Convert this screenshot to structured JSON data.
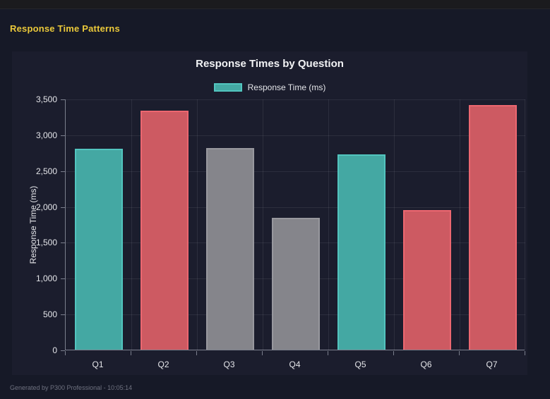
{
  "page": {
    "heading": "Response Time Patterns",
    "footer": "Generated by P300 Professional - 10:05:14"
  },
  "colors": {
    "heading_yellow": "#ebc93a",
    "outer_background": "#161927",
    "panel_background": "#1b1d2d",
    "topbar_background": "#1b1b1e",
    "grid_line": "rgba(255,255,255,0.08)",
    "axis_line": "#7b7f8d",
    "tick_text": "#e4e5e9",
    "title_text": "#f2f3f5",
    "footer_text": "#6f7280",
    "teal_fill": "#44a8a3",
    "teal_border": "#52c5bf",
    "red_fill": "#cd5a62",
    "red_border": "#ec6770",
    "gray_fill": "#85858b",
    "gray_border": "#98989e"
  },
  "chart_data": {
    "type": "bar",
    "title": "Response Times by Question",
    "categories": [
      "Q1",
      "Q2",
      "Q3",
      "Q4",
      "Q5",
      "Q6",
      "Q7"
    ],
    "series": [
      {
        "name": "Response Time (ms)",
        "values": [
          2800,
          3330,
          2810,
          1840,
          2720,
          1950,
          3410
        ]
      }
    ],
    "bar_color_names": [
      "teal",
      "red",
      "gray",
      "gray",
      "teal",
      "red",
      "red"
    ],
    "xlabel": "",
    "ylabel": "Response Time (ms)",
    "ylim": [
      0,
      3500
    ],
    "yticks": [
      0,
      500,
      1000,
      1500,
      2000,
      2500,
      3000,
      3500
    ],
    "ytick_labels": [
      "0",
      "500",
      "1,000",
      "1,500",
      "2,000",
      "2,500",
      "3,000",
      "3,500"
    ],
    "grid": true,
    "legend": {
      "position": "top",
      "entries": [
        {
          "label": "Response Time (ms)",
          "color_name": "teal"
        }
      ]
    }
  }
}
